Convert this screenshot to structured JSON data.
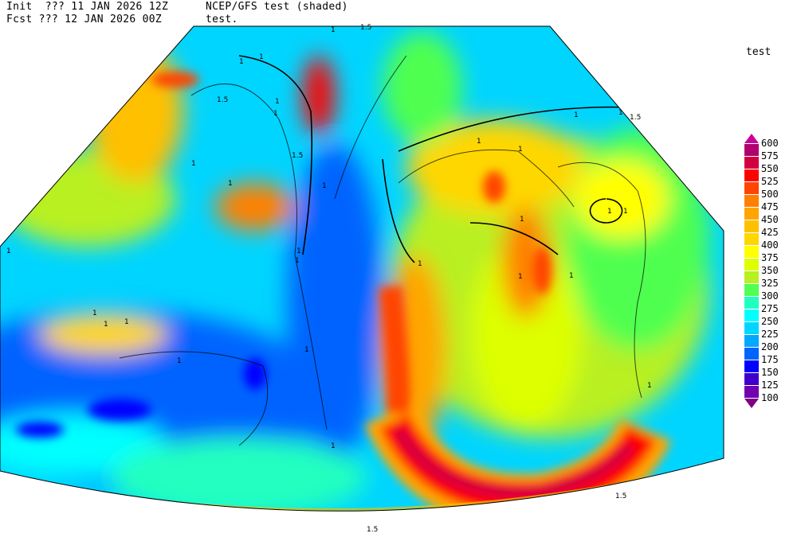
{
  "header": {
    "line1_left": "Init  ??? 11 JAN 2026 12Z",
    "line1_right": "NCEP/GFS test (shaded)",
    "line2_left": "Fcst ??? 12 JAN 2026 00Z",
    "line2_right": "test."
  },
  "colorbar": {
    "title": "test",
    "labels": [
      "600",
      "575",
      "550",
      "525",
      "500",
      "475",
      "450",
      "425",
      "400",
      "375",
      "350",
      "325",
      "300",
      "275",
      "250",
      "225",
      "200",
      "175",
      "150",
      "125",
      "100"
    ],
    "colors": [
      "#b0006e",
      "#d20040",
      "#ff0000",
      "#ff4500",
      "#ff8000",
      "#ffa500",
      "#ffc000",
      "#ffd700",
      "#ffff00",
      "#ddff00",
      "#b8f020",
      "#50ff50",
      "#20ffc0",
      "#00ffff",
      "#00d5ff",
      "#00a8ff",
      "#0064ff",
      "#0000ff",
      "#4000cc",
      "#7000b0"
    ],
    "over_color": "#cc0099",
    "under_color": "#800080"
  },
  "contour_labels": [
    "1",
    "1.5",
    "1",
    "1",
    "1",
    "1.5",
    "1",
    "1",
    "1.5",
    "1",
    "1",
    "1",
    "1",
    "1",
    "1",
    "1",
    "1",
    "1",
    "1",
    "1",
    "1",
    "1",
    "1.5",
    "1",
    "1",
    "1",
    "1",
    "1",
    "1",
    "1",
    "1",
    "1.5",
    "1",
    "1.5"
  ]
}
